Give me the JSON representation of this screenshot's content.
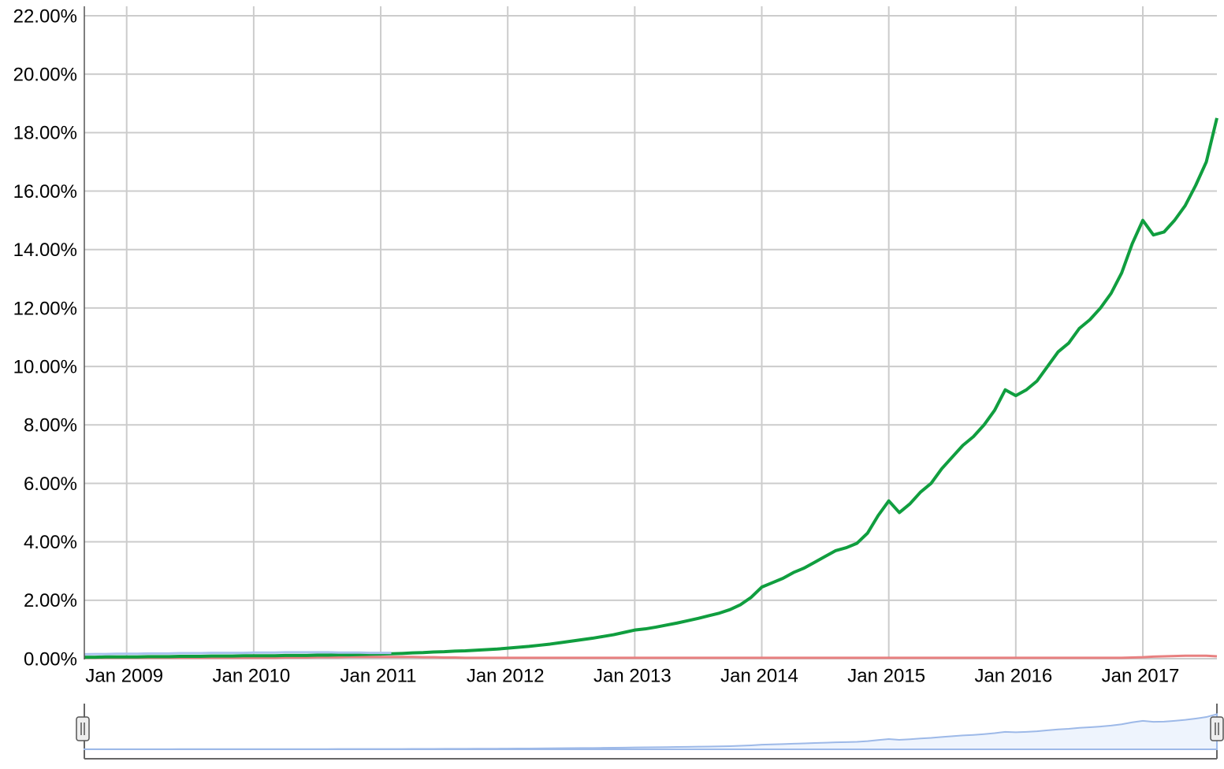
{
  "chart_data": {
    "type": "line",
    "x": [
      "2008-09",
      "2008-10",
      "2008-11",
      "2008-12",
      "2009-01",
      "2009-02",
      "2009-03",
      "2009-04",
      "2009-05",
      "2009-06",
      "2009-07",
      "2009-08",
      "2009-09",
      "2009-10",
      "2009-11",
      "2009-12",
      "2010-01",
      "2010-02",
      "2010-03",
      "2010-04",
      "2010-05",
      "2010-06",
      "2010-07",
      "2010-08",
      "2010-09",
      "2010-10",
      "2010-11",
      "2010-12",
      "2011-01",
      "2011-02",
      "2011-03",
      "2011-04",
      "2011-05",
      "2011-06",
      "2011-07",
      "2011-08",
      "2011-09",
      "2011-10",
      "2011-11",
      "2011-12",
      "2012-01",
      "2012-02",
      "2012-03",
      "2012-04",
      "2012-05",
      "2012-06",
      "2012-07",
      "2012-08",
      "2012-09",
      "2012-10",
      "2012-11",
      "2012-12",
      "2013-01",
      "2013-02",
      "2013-03",
      "2013-04",
      "2013-05",
      "2013-06",
      "2013-07",
      "2013-08",
      "2013-09",
      "2013-10",
      "2013-11",
      "2013-12",
      "2014-01",
      "2014-02",
      "2014-03",
      "2014-04",
      "2014-05",
      "2014-06",
      "2014-07",
      "2014-08",
      "2014-09",
      "2014-10",
      "2014-11",
      "2014-12",
      "2015-01",
      "2015-02",
      "2015-03",
      "2015-04",
      "2015-05",
      "2015-06",
      "2015-07",
      "2015-08",
      "2015-09",
      "2015-10",
      "2015-11",
      "2015-12",
      "2016-01",
      "2016-02",
      "2016-03",
      "2016-04",
      "2016-05",
      "2016-06",
      "2016-07",
      "2016-08",
      "2016-09",
      "2016-10",
      "2016-11",
      "2016-12",
      "2017-01",
      "2017-02",
      "2017-03",
      "2017-04",
      "2017-05",
      "2017-06",
      "2017-07",
      "2017-08"
    ],
    "series": [
      {
        "color": "#109e3f",
        "values": [
          0.05,
          0.05,
          0.06,
          0.06,
          0.06,
          0.06,
          0.07,
          0.07,
          0.07,
          0.08,
          0.08,
          0.08,
          0.09,
          0.09,
          0.09,
          0.1,
          0.1,
          0.1,
          0.1,
          0.11,
          0.11,
          0.11,
          0.12,
          0.12,
          0.13,
          0.13,
          0.14,
          0.15,
          0.16,
          0.17,
          0.18,
          0.2,
          0.21,
          0.23,
          0.24,
          0.26,
          0.27,
          0.29,
          0.31,
          0.33,
          0.36,
          0.39,
          0.42,
          0.46,
          0.5,
          0.55,
          0.6,
          0.65,
          0.7,
          0.76,
          0.82,
          0.9,
          0.98,
          1.02,
          1.08,
          1.15,
          1.22,
          1.3,
          1.38,
          1.47,
          1.56,
          1.68,
          1.85,
          2.1,
          2.45,
          2.6,
          2.75,
          2.95,
          3.1,
          3.3,
          3.5,
          3.7,
          3.8,
          3.95,
          4.3,
          4.9,
          5.4,
          5.0,
          5.3,
          5.7,
          6.0,
          6.5,
          6.9,
          7.3,
          7.6,
          8.0,
          8.5,
          9.2,
          9.0,
          9.2,
          9.5,
          10.0,
          10.5,
          10.8,
          11.3,
          11.6,
          12.0,
          12.5,
          13.2,
          14.2,
          15.0,
          14.5,
          14.6,
          15.0,
          15.5,
          16.2,
          17.0,
          18.5
        ]
      },
      {
        "color": "#e88080",
        "values": [
          0.03,
          0.03,
          0.03,
          0.03,
          0.03,
          0.03,
          0.03,
          0.03,
          0.03,
          0.03,
          0.03,
          0.03,
          0.03,
          0.03,
          0.03,
          0.03,
          0.03,
          0.03,
          0.03,
          0.04,
          0.04,
          0.04,
          0.05,
          0.05,
          0.05,
          0.06,
          0.06,
          0.06,
          0.06,
          0.06,
          0.06,
          0.06,
          0.05,
          0.05,
          0.04,
          0.04,
          0.03,
          0.03,
          0.03,
          0.03,
          0.03,
          0.03,
          0.03,
          0.03,
          0.03,
          0.03,
          0.03,
          0.03,
          0.03,
          0.03,
          0.03,
          0.03,
          0.03,
          0.03,
          0.03,
          0.03,
          0.03,
          0.03,
          0.03,
          0.03,
          0.03,
          0.03,
          0.03,
          0.03,
          0.03,
          0.03,
          0.03,
          0.03,
          0.03,
          0.03,
          0.03,
          0.03,
          0.03,
          0.03,
          0.03,
          0.03,
          0.03,
          0.03,
          0.03,
          0.03,
          0.03,
          0.03,
          0.03,
          0.03,
          0.03,
          0.03,
          0.03,
          0.03,
          0.03,
          0.03,
          0.03,
          0.03,
          0.03,
          0.03,
          0.03,
          0.03,
          0.03,
          0.03,
          0.03,
          0.04,
          0.05,
          0.07,
          0.08,
          0.09,
          0.1,
          0.1,
          0.1,
          0.08
        ]
      },
      {
        "color": "#a9c3ee",
        "values": [
          0.15,
          0.16,
          0.16,
          0.17,
          0.17,
          0.17,
          0.18,
          0.18,
          0.18,
          0.19,
          0.19,
          0.19,
          0.2,
          0.2,
          0.2,
          0.2,
          0.21,
          0.21,
          0.21,
          0.22,
          0.22,
          0.22,
          0.22,
          0.22,
          0.21,
          0.21,
          0.21,
          0.2,
          0.2,
          0.2,
          null,
          null,
          null,
          null,
          null,
          null,
          null,
          null,
          null,
          null,
          null,
          null,
          null,
          null,
          null,
          null,
          null,
          null,
          null,
          null,
          null,
          null,
          null,
          null,
          null,
          null,
          null,
          null,
          null,
          null,
          null,
          null,
          null,
          null,
          null,
          null,
          null,
          null,
          null,
          null,
          null,
          null,
          null,
          null,
          null,
          null,
          null,
          null,
          null,
          null,
          null,
          null,
          null,
          null,
          null,
          null,
          null,
          null,
          null,
          null,
          null,
          null,
          null,
          null,
          null,
          null,
          null,
          null,
          null,
          null,
          null,
          null,
          null,
          null,
          null,
          null,
          null,
          null
        ]
      }
    ],
    "xlim": [
      "2008-09",
      "2017-08"
    ],
    "xticks": [
      {
        "value": "2009-01",
        "label": "Jan 2009"
      },
      {
        "value": "2010-01",
        "label": "Jan 2010"
      },
      {
        "value": "2011-01",
        "label": "Jan 2011"
      },
      {
        "value": "2012-01",
        "label": "Jan 2012"
      },
      {
        "value": "2013-01",
        "label": "Jan 2013"
      },
      {
        "value": "2014-01",
        "label": "Jan 2014"
      },
      {
        "value": "2015-01",
        "label": "Jan 2015"
      },
      {
        "value": "2016-01",
        "label": "Jan 2016"
      },
      {
        "value": "2017-01",
        "label": "Jan 2017"
      }
    ],
    "ylim": [
      0,
      22
    ],
    "yticks": [
      {
        "value": 0,
        "label": "0.00%"
      },
      {
        "value": 2,
        "label": "2.00%"
      },
      {
        "value": 4,
        "label": "4.00%"
      },
      {
        "value": 6,
        "label": "6.00%"
      },
      {
        "value": 8,
        "label": "8.00%"
      },
      {
        "value": 10,
        "label": "10.00%"
      },
      {
        "value": 12,
        "label": "12.00%"
      },
      {
        "value": 14,
        "label": "14.00%"
      },
      {
        "value": 16,
        "label": "16.00%"
      },
      {
        "value": 18,
        "label": "18.00%"
      },
      {
        "value": 20,
        "label": "20.00%"
      },
      {
        "value": 22,
        "label": "22.00%"
      }
    ],
    "grid": true
  }
}
